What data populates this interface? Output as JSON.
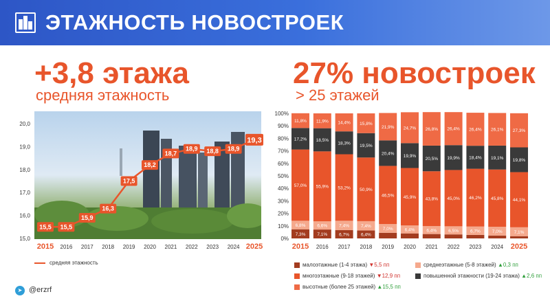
{
  "header": {
    "title": "ЭТАЖНОСТЬ НОВОСТРОЕК",
    "icon": "buildings-icon"
  },
  "left_stat": {
    "value": "+3,8 этажа",
    "label": "средняя этажность"
  },
  "right_stat": {
    "value": "27% новостроек",
    "label": "> 25 этажей"
  },
  "footer": {
    "handle": "@erzrf",
    "icon": "telegram-icon"
  },
  "colors": {
    "accent": "#e8552b",
    "dark": "#3a3a3a",
    "low": "#a33c1f",
    "mid": "#f5a98d",
    "high": "#e8552b",
    "header": "#2d56c6"
  },
  "chart_data": [
    {
      "type": "line",
      "categories": [
        "2015",
        "2016",
        "2017",
        "2018",
        "2019",
        "2020",
        "2021",
        "2022",
        "2023",
        "2024",
        "2025"
      ],
      "series": [
        {
          "name": "средняя этажность",
          "values": [
            15.5,
            15.5,
            15.9,
            16.3,
            17.5,
            18.2,
            18.7,
            18.9,
            18.8,
            18.9,
            19.3
          ],
          "labels": [
            "15,5",
            "15,5",
            "15,9",
            "16,3",
            "17,5",
            "18,2",
            "18,7",
            "18,9",
            "18,8",
            "18,9",
            "19,3"
          ]
        }
      ],
      "ylim": [
        15.0,
        20.0
      ],
      "yticks": [
        "15,0",
        "16,0",
        "17,0",
        "18,0",
        "19,0",
        "20,0"
      ],
      "legend": "bottom-left"
    },
    {
      "type": "bar",
      "stacked": true,
      "categories": [
        "2015",
        "2016",
        "2017",
        "2018",
        "2019",
        "2020",
        "2021",
        "2022",
        "2023",
        "2024",
        "2025"
      ],
      "yticks": [
        "0%",
        "10%",
        "20%",
        "30%",
        "40%",
        "50%",
        "60%",
        "70%",
        "80%",
        "90%",
        "100%"
      ],
      "ylim": [
        0,
        100
      ],
      "series": [
        {
          "name": "малоэтажные (1-4 этажа)",
          "change": "▼5,5 пп",
          "trend": "down",
          "values": [
            7.3,
            7.1,
            6.7,
            6.4,
            4.5,
            4.0,
            3.5,
            3.2,
            2.8,
            2.3,
            1.8
          ],
          "labels": [
            "7,3%",
            "7,1%",
            "6,7%",
            "6,4%",
            "",
            "",
            "",
            "",
            "",
            "",
            ""
          ]
        },
        {
          "name": "среднеэтажные (5-8 этажей)",
          "change": "▲0,3 пп",
          "trend": "up",
          "values": [
            6.8,
            6.6,
            7.4,
            7.4,
            7.0,
            6.4,
            6.4,
            6.5,
            6.7,
            7.0,
            7.1
          ],
          "labels": [
            "6,8%",
            "6,6%",
            "7,4%",
            "7,4%",
            "7,0%",
            "6,4%",
            "6,4%",
            "6,5%",
            "6,7%",
            "7,0%",
            "7,1%"
          ]
        },
        {
          "name": "многоэтажные (9-18 этажей)",
          "change": "▼12,9 пп",
          "trend": "down",
          "values": [
            57.0,
            55.9,
            53.2,
            50.9,
            46.5,
            45.9,
            43.8,
            45.0,
            46.2,
            45.8,
            44.1
          ],
          "labels": [
            "57,0%",
            "55,9%",
            "53,2%",
            "50,9%",
            "46,5%",
            "45,9%",
            "43,8%",
            "45,0%",
            "46,2%",
            "45,8%",
            "44,1%"
          ]
        },
        {
          "name": "повышенной этажности (19-24 этажа)",
          "change": "▲2,6 пп",
          "trend": "up",
          "values": [
            17.2,
            18.5,
            18.3,
            19.5,
            20.4,
            19.9,
            20.5,
            19.9,
            18.4,
            19.1,
            19.8
          ],
          "labels": [
            "17,2%",
            "18,5%",
            "18,3%",
            "19,5%",
            "20,4%",
            "19,9%",
            "20,5%",
            "19,9%",
            "18,4%",
            "19,1%",
            "19,8%"
          ]
        },
        {
          "name": "высотные (более 25 этажей)",
          "change": "▲15,5 пп",
          "trend": "up",
          "values": [
            11.8,
            11.9,
            14.4,
            15.8,
            21.9,
            24.7,
            26.8,
            26.4,
            26.4,
            26.1,
            27.3
          ],
          "labels": [
            "11,8%",
            "11,9%",
            "14,4%",
            "15,8%",
            "21,9%",
            "24,7%",
            "26,8%",
            "26,4%",
            "26,4%",
            "26,1%",
            "27,3%"
          ]
        }
      ],
      "legend": "bottom"
    }
  ]
}
